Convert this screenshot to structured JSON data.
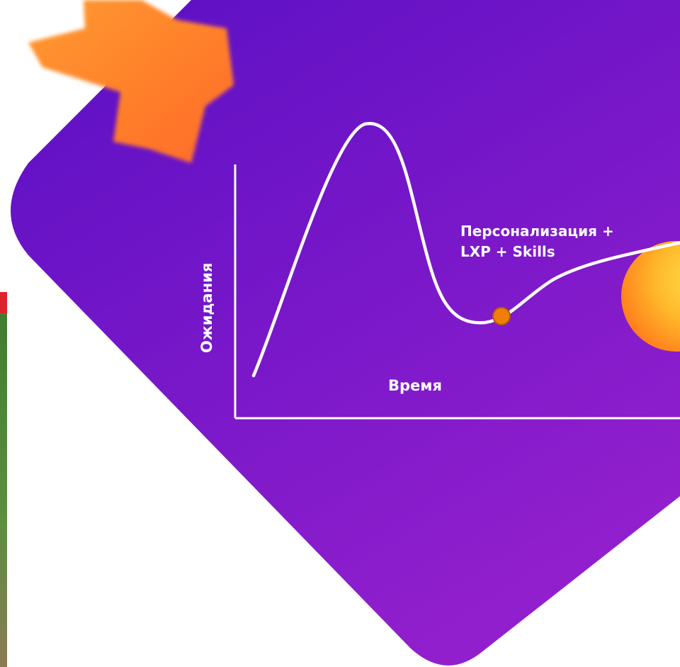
{
  "diagram": {
    "annotation": {
      "line1": "Персонализация +",
      "line2": "LXP + Skills"
    },
    "x_axis_label": "Время",
    "y_axis_label": "Ожидания"
  },
  "colors": {
    "background_gradient_top": "#5a0fc4",
    "background_gradient_bottom": "#8f1fcc",
    "curve": "#ffffff",
    "marker": "#f07f0a",
    "marker_stroke": "#b35a06",
    "star": "#ff7a2a",
    "orb_light": "#ffd93a",
    "orb_dark": "#ff8a1e",
    "photo_strip": "#4f8a3a",
    "photo_strip_top": "#e1222b"
  }
}
